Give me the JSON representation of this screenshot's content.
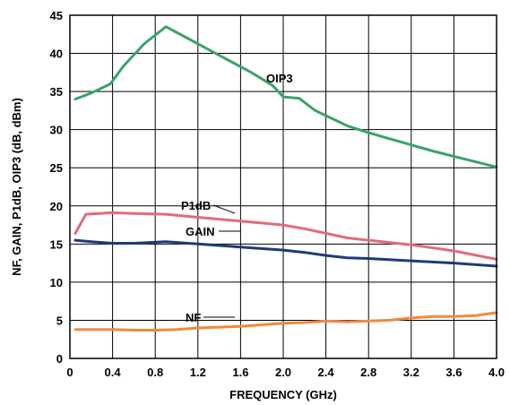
{
  "chart_data": {
    "type": "line",
    "xlabel": "FREQUENCY (GHz)",
    "ylabel": "NF, GAIN, P1dB, OIP3 (dB, dBm)",
    "xlim": [
      0,
      4.0
    ],
    "ylim": [
      0,
      45
    ],
    "xticks": [
      "0",
      "0.4",
      "0.8",
      "1.2",
      "1.6",
      "2.0",
      "2.4",
      "2.8",
      "3.2",
      "3.6",
      "4.0"
    ],
    "yticks": [
      "0",
      "5",
      "10",
      "15",
      "20",
      "25",
      "30",
      "35",
      "40",
      "45"
    ],
    "grid": true,
    "series": [
      {
        "name": "OIP3",
        "color": "#3aa36a",
        "x": [
          0.05,
          0.2,
          0.38,
          0.5,
          0.7,
          0.9,
          1.1,
          1.3,
          1.5,
          1.7,
          1.9,
          2.0,
          2.15,
          2.3,
          2.6,
          2.8,
          3.0,
          3.2,
          3.4,
          3.6,
          3.8,
          4.0
        ],
        "y": [
          34,
          34.8,
          36,
          38.3,
          41.3,
          43.5,
          42,
          40.5,
          39,
          37.5,
          35.8,
          34.3,
          34.1,
          32.5,
          30.5,
          29.6,
          28.8,
          28,
          27.2,
          26.5,
          25.8,
          25.1
        ]
      },
      {
        "name": "P1dB",
        "color": "#e06b7d",
        "x": [
          0.05,
          0.15,
          0.4,
          0.6,
          0.9,
          1.2,
          1.6,
          2.0,
          2.2,
          2.4,
          2.6,
          2.8,
          3.2,
          3.6,
          4.0
        ],
        "y": [
          16.4,
          18.9,
          19.1,
          19,
          18.9,
          18.5,
          18,
          17.5,
          17,
          16.4,
          15.8,
          15.5,
          14.9,
          14.1,
          13
        ]
      },
      {
        "name": "GAIN",
        "color": "#1f3a7a",
        "x": [
          0.05,
          0.2,
          0.4,
          0.6,
          0.9,
          1.2,
          1.6,
          2.0,
          2.2,
          2.4,
          2.6,
          2.8,
          3.2,
          3.6,
          4.0
        ],
        "y": [
          15.5,
          15.3,
          15.1,
          15.1,
          15.3,
          15,
          14.6,
          14.2,
          13.9,
          13.5,
          13.2,
          13.1,
          12.8,
          12.5,
          12.1
        ]
      },
      {
        "name": "NF",
        "color": "#f08a3c",
        "x": [
          0.05,
          0.2,
          0.4,
          0.6,
          0.8,
          1.0,
          1.2,
          1.6,
          2.0,
          2.2,
          2.4,
          2.6,
          2.8,
          3.0,
          3.2,
          3.4,
          3.6,
          3.8,
          4.0
        ],
        "y": [
          3.8,
          3.8,
          3.8,
          3.7,
          3.7,
          3.8,
          4.0,
          4.2,
          4.6,
          4.7,
          4.9,
          4.8,
          4.9,
          5.0,
          5.3,
          5.5,
          5.5,
          5.6,
          6.0
        ]
      }
    ],
    "labels": [
      {
        "text": "OIP3",
        "series": "OIP3"
      },
      {
        "text": "P1dB",
        "series": "P1dB"
      },
      {
        "text": "GAIN",
        "series": "GAIN"
      },
      {
        "text": "NF",
        "series": "NF"
      }
    ]
  }
}
